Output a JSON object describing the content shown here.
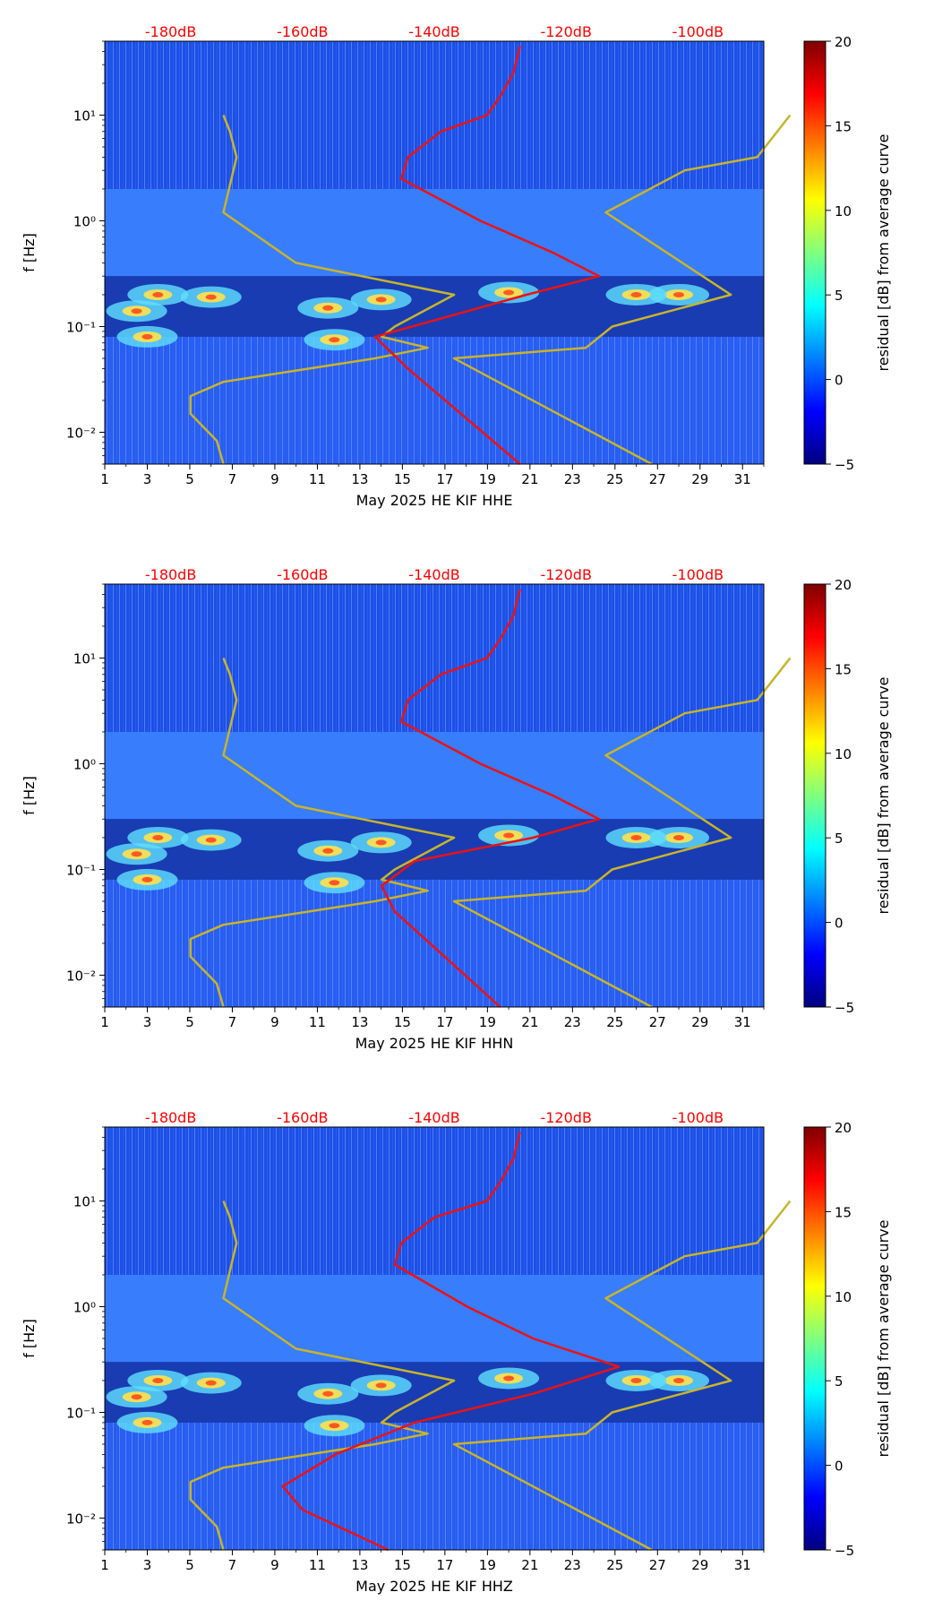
{
  "chart_data": {
    "type": "heatmap",
    "colorbar": {
      "label": "residual [dB] from average curve",
      "ticks": [
        "−5",
        "0",
        "5",
        "10",
        "15",
        "20"
      ],
      "range": [
        -5,
        20
      ],
      "colormap": "jet"
    },
    "panels": [
      {
        "xlabel": "May 2025 HE KIF  HHE",
        "ylabel": "f [Hz]",
        "x_ticks": [
          "1",
          "3",
          "5",
          "7",
          "9",
          "11",
          "13",
          "15",
          "17",
          "19",
          "21",
          "23",
          "25",
          "27",
          "29",
          "31"
        ],
        "y_ticks": [
          "10⁻²",
          "10⁻¹",
          "10⁰",
          "10¹"
        ],
        "top_labels": [
          "-180dB",
          "-160dB",
          "-140dB",
          "-120dB",
          "-100dB"
        ],
        "ylim": [
          0.005,
          50
        ],
        "xlim": [
          1,
          32
        ],
        "curves": {
          "peterson_low_dB": [
            [
              -172,
              0.005
            ],
            [
              -173,
              0.0083
            ],
            [
              -177,
              0.015
            ],
            [
              -177,
              0.022
            ],
            [
              -172,
              0.03
            ],
            [
              -149,
              0.05
            ],
            [
              -141,
              0.063
            ],
            [
              -148,
              0.08
            ],
            [
              -146,
              0.1
            ],
            [
              -137,
              0.2
            ],
            [
              -161,
              0.4
            ],
            [
              -172,
              1.2
            ],
            [
              -170,
              4
            ],
            [
              -171,
              7
            ],
            [
              -172,
              10
            ]
          ],
          "peterson_high_dB": [
            [
              -107,
              0.005
            ],
            [
              -137,
              0.05
            ],
            [
              -117,
              0.063
            ],
            [
              -113,
              0.1
            ],
            [
              -95,
              0.2
            ],
            [
              -114,
              1.2
            ],
            [
              -102,
              3
            ],
            [
              -91,
              4
            ],
            [
              -86,
              10
            ]
          ],
          "station_median_dB": [
            [
              -127,
              0.005
            ],
            [
              -144,
              0.04
            ],
            [
              -149,
              0.08
            ],
            [
              -126,
              0.2
            ],
            [
              -115,
              0.3
            ],
            [
              -122,
              0.5
            ],
            [
              -133,
              1
            ],
            [
              -145,
              2.5
            ],
            [
              -144,
              4
            ],
            [
              -139,
              7
            ],
            [
              -132,
              10
            ],
            [
              -130,
              15
            ],
            [
              -128,
              25
            ],
            [
              -127,
              45
            ]
          ]
        }
      },
      {
        "xlabel": "May 2025 HE KIF  HHN",
        "ylabel": "f [Hz]",
        "x_ticks": [
          "1",
          "3",
          "5",
          "7",
          "9",
          "11",
          "13",
          "15",
          "17",
          "19",
          "21",
          "23",
          "25",
          "27",
          "29",
          "31"
        ],
        "y_ticks": [
          "10⁻²",
          "10⁻¹",
          "10⁰",
          "10¹"
        ],
        "top_labels": [
          "-180dB",
          "-160dB",
          "-140dB",
          "-120dB",
          "-100dB"
        ],
        "ylim": [
          0.005,
          50
        ],
        "xlim": [
          1,
          32
        ],
        "curves": {
          "peterson_low_dB": [
            [
              -172,
              0.005
            ],
            [
              -173,
              0.0083
            ],
            [
              -177,
              0.015
            ],
            [
              -177,
              0.022
            ],
            [
              -172,
              0.03
            ],
            [
              -149,
              0.05
            ],
            [
              -141,
              0.063
            ],
            [
              -148,
              0.08
            ],
            [
              -146,
              0.1
            ],
            [
              -137,
              0.2
            ],
            [
              -161,
              0.4
            ],
            [
              -172,
              1.2
            ],
            [
              -170,
              4
            ],
            [
              -171,
              7
            ],
            [
              -172,
              10
            ]
          ],
          "peterson_high_dB": [
            [
              -107,
              0.005
            ],
            [
              -137,
              0.05
            ],
            [
              -117,
              0.063
            ],
            [
              -113,
              0.1
            ],
            [
              -95,
              0.2
            ],
            [
              -114,
              1.2
            ],
            [
              -102,
              3
            ],
            [
              -91,
              4
            ],
            [
              -86,
              10
            ]
          ],
          "station_median_dB": [
            [
              -130,
              0.005
            ],
            [
              -146,
              0.04
            ],
            [
              -148,
              0.07
            ],
            [
              -143,
              0.12
            ],
            [
              -125,
              0.2
            ],
            [
              -115,
              0.3
            ],
            [
              -122,
              0.5
            ],
            [
              -133,
              1
            ],
            [
              -145,
              2.5
            ],
            [
              -144,
              4
            ],
            [
              -139,
              7
            ],
            [
              -132,
              10
            ],
            [
              -130,
              15
            ],
            [
              -128,
              25
            ],
            [
              -127,
              45
            ]
          ]
        }
      },
      {
        "xlabel": "May 2025 HE KIF  HHZ",
        "ylabel": "f [Hz]",
        "x_ticks": [
          "1",
          "3",
          "5",
          "7",
          "9",
          "11",
          "13",
          "15",
          "17",
          "19",
          "21",
          "23",
          "25",
          "27",
          "29",
          "31"
        ],
        "y_ticks": [
          "10⁻²",
          "10⁻¹",
          "10⁰",
          "10¹"
        ],
        "top_labels": [
          "-180dB",
          "-160dB",
          "-140dB",
          "-120dB",
          "-100dB"
        ],
        "ylim": [
          0.005,
          50
        ],
        "xlim": [
          1,
          32
        ],
        "curves": {
          "peterson_low_dB": [
            [
              -172,
              0.005
            ],
            [
              -173,
              0.0083
            ],
            [
              -177,
              0.015
            ],
            [
              -177,
              0.022
            ],
            [
              -172,
              0.03
            ],
            [
              -149,
              0.05
            ],
            [
              -141,
              0.063
            ],
            [
              -148,
              0.08
            ],
            [
              -146,
              0.1
            ],
            [
              -137,
              0.2
            ],
            [
              -161,
              0.4
            ],
            [
              -172,
              1.2
            ],
            [
              -170,
              4
            ],
            [
              -171,
              7
            ],
            [
              -172,
              10
            ]
          ],
          "peterson_high_dB": [
            [
              -107,
              0.005
            ],
            [
              -137,
              0.05
            ],
            [
              -117,
              0.063
            ],
            [
              -113,
              0.1
            ],
            [
              -95,
              0.2
            ],
            [
              -114,
              1.2
            ],
            [
              -102,
              3
            ],
            [
              -91,
              4
            ],
            [
              -86,
              10
            ]
          ],
          "station_median_dB": [
            [
              -147,
              0.005
            ],
            [
              -160,
              0.012
            ],
            [
              -163,
              0.02
            ],
            [
              -155,
              0.04
            ],
            [
              -143,
              0.08
            ],
            [
              -125,
              0.15
            ],
            [
              -112,
              0.27
            ],
            [
              -125,
              0.5
            ],
            [
              -135,
              1
            ],
            [
              -146,
              2.5
            ],
            [
              -145,
              4
            ],
            [
              -140,
              7
            ],
            [
              -132,
              10
            ],
            [
              -130,
              15
            ],
            [
              -128,
              25
            ],
            [
              -127,
              45
            ]
          ]
        }
      }
    ]
  }
}
